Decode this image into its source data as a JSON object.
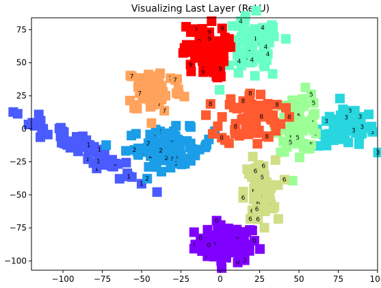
{
  "chart_data": {
    "type": "scatter",
    "title": "Visualizing Last Layer (ReLU)",
    "xlabel": "",
    "ylabel": "",
    "xlim": [
      -120,
      100
    ],
    "ylim": [
      -107,
      84
    ],
    "xticks": [
      -100,
      -75,
      -50,
      -25,
      0,
      25,
      50,
      75,
      100
    ],
    "yticks": [
      -100,
      -75,
      -50,
      -25,
      0,
      25,
      50,
      75
    ],
    "grid": false,
    "legend": "none",
    "clusters": [
      {
        "label": "0",
        "color": "#8000ff",
        "center": [
          4,
          -87
        ],
        "spread": [
          10,
          7
        ],
        "count": 80
      },
      {
        "label": "1",
        "color": "#4a5bff",
        "center": [
          -90,
          -12
        ],
        "spread": [
          7,
          7
        ],
        "count": 75,
        "stretch": "diagonal"
      },
      {
        "label": "2",
        "color": "#1b9de8",
        "center": [
          -32,
          -14
        ],
        "spread": [
          14,
          7
        ],
        "count": 80
      },
      {
        "label": "3",
        "color": "#28d6e0",
        "center": [
          80,
          0
        ],
        "spread": [
          9,
          7
        ],
        "count": 75
      },
      {
        "label": "4",
        "color": "#6affc6",
        "center": [
          20,
          60
        ],
        "spread": [
          9,
          12
        ],
        "count": 75
      },
      {
        "label": "5",
        "color": "#9cff96",
        "center": [
          50,
          5
        ],
        "spread": [
          7,
          11
        ],
        "count": 70
      },
      {
        "label": "6",
        "color": "#d0de86",
        "center": [
          25,
          -48
        ],
        "spread": [
          5,
          12
        ],
        "count": 70
      },
      {
        "label": "7",
        "color": "#ffa35c",
        "center": [
          -42,
          30
        ],
        "spread": [
          9,
          9
        ],
        "count": 70
      },
      {
        "label": "8",
        "color": "#ff5a30",
        "center": [
          20,
          8
        ],
        "spread": [
          10,
          10
        ],
        "count": 75
      },
      {
        "label": "9",
        "color": "#ff0000",
        "center": [
          -10,
          58
        ],
        "spread": [
          7,
          10
        ],
        "count": 70
      }
    ]
  }
}
